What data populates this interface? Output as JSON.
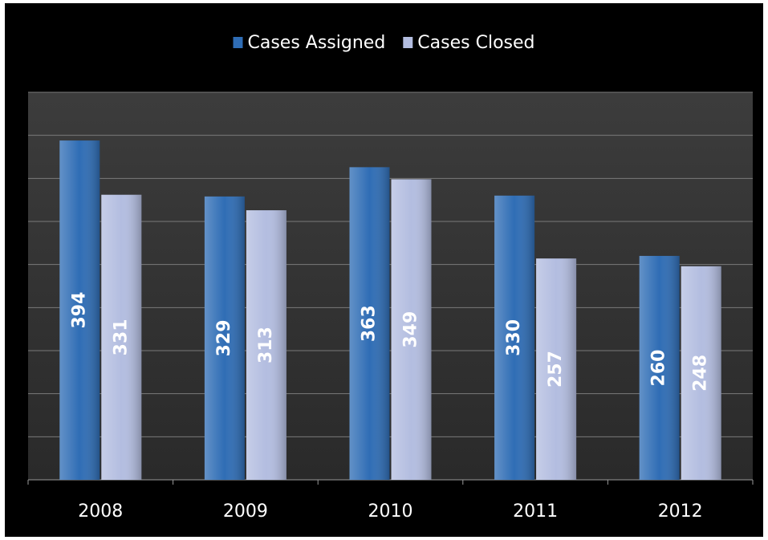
{
  "chart_data": {
    "type": "bar",
    "categories": [
      "2008",
      "2009",
      "2010",
      "2011",
      "2012"
    ],
    "series": [
      {
        "name": "Cases Assigned",
        "color": "#2f6db5",
        "values": [
          394,
          329,
          363,
          330,
          260
        ]
      },
      {
        "name": "Cases Closed",
        "color": "#b3bde0",
        "values": [
          331,
          313,
          349,
          257,
          248
        ]
      }
    ],
    "ylim": [
      0,
      450
    ],
    "yticks": [
      0,
      50,
      100,
      150,
      200,
      250,
      300,
      350,
      400,
      450
    ],
    "grid": true,
    "legend": "top"
  }
}
